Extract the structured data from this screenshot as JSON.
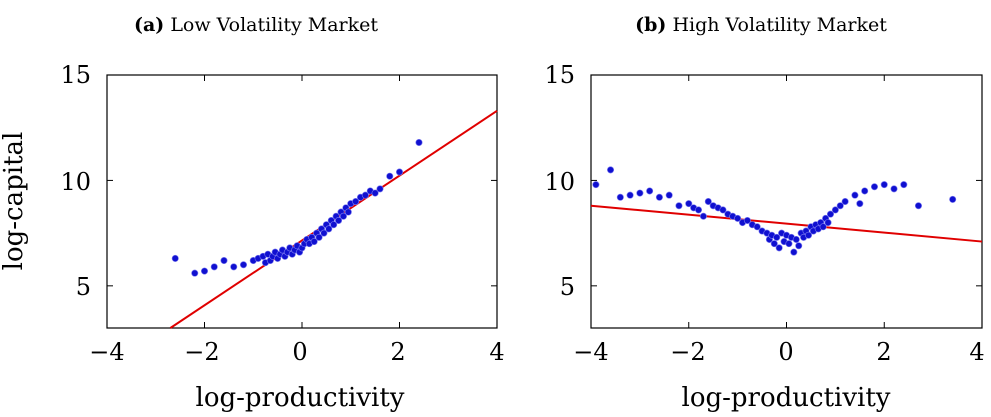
{
  "chart_data": [
    {
      "type": "scatter",
      "panel_label": "(a)",
      "title": "Low Volatility Market",
      "xlabel": "log-productivity",
      "ylabel": "log-capital",
      "xlim": [
        -4,
        4
      ],
      "ylim": [
        3,
        15
      ],
      "xticks": [
        -4,
        -2,
        0,
        2,
        4
      ],
      "yticks": [
        5,
        10,
        15
      ],
      "grid": false,
      "marker_color": "#1010d0",
      "line_color": "#e00000",
      "series": [
        {
          "kind": "points",
          "points": [
            [
              -2.6,
              6.3
            ],
            [
              -2.2,
              5.6
            ],
            [
              -2.0,
              5.7
            ],
            [
              -1.8,
              5.9
            ],
            [
              -1.6,
              6.2
            ],
            [
              -1.4,
              5.9
            ],
            [
              -1.2,
              6.0
            ],
            [
              -1.0,
              6.2
            ],
            [
              -0.9,
              6.3
            ],
            [
              -0.8,
              6.4
            ],
            [
              -0.75,
              6.1
            ],
            [
              -0.7,
              6.5
            ],
            [
              -0.65,
              6.2
            ],
            [
              -0.6,
              6.4
            ],
            [
              -0.55,
              6.6
            ],
            [
              -0.5,
              6.3
            ],
            [
              -0.45,
              6.5
            ],
            [
              -0.4,
              6.7
            ],
            [
              -0.35,
              6.4
            ],
            [
              -0.3,
              6.6
            ],
            [
              -0.25,
              6.8
            ],
            [
              -0.2,
              6.5
            ],
            [
              -0.15,
              6.7
            ],
            [
              -0.1,
              6.9
            ],
            [
              -0.05,
              6.6
            ],
            [
              0.0,
              6.8
            ],
            [
              0.05,
              7.0
            ],
            [
              0.1,
              7.2
            ],
            [
              0.15,
              7.0
            ],
            [
              0.2,
              7.3
            ],
            [
              0.25,
              7.1
            ],
            [
              0.3,
              7.5
            ],
            [
              0.35,
              7.3
            ],
            [
              0.4,
              7.7
            ],
            [
              0.45,
              7.5
            ],
            [
              0.5,
              7.9
            ],
            [
              0.55,
              7.7
            ],
            [
              0.6,
              8.1
            ],
            [
              0.65,
              7.9
            ],
            [
              0.7,
              8.3
            ],
            [
              0.75,
              8.1
            ],
            [
              0.8,
              8.5
            ],
            [
              0.85,
              8.3
            ],
            [
              0.9,
              8.7
            ],
            [
              0.95,
              8.5
            ],
            [
              1.0,
              8.9
            ],
            [
              1.1,
              9.0
            ],
            [
              1.2,
              9.2
            ],
            [
              1.3,
              9.3
            ],
            [
              1.4,
              9.5
            ],
            [
              1.5,
              9.4
            ],
            [
              1.6,
              9.6
            ],
            [
              1.8,
              10.2
            ],
            [
              2.0,
              10.4
            ],
            [
              2.4,
              11.8
            ]
          ]
        },
        {
          "kind": "fit_line",
          "x": [
            -2.7,
            4.0
          ],
          "y": [
            3.0,
            13.3
          ]
        }
      ]
    },
    {
      "type": "scatter",
      "panel_label": "(b)",
      "title": "High Volatility Market",
      "xlabel": "log-productivity",
      "ylabel": "",
      "xlim": [
        -4,
        4
      ],
      "ylim": [
        3,
        15
      ],
      "xticks": [
        -4,
        -2,
        0,
        2,
        4
      ],
      "yticks": [
        5,
        10,
        15
      ],
      "grid": false,
      "marker_color": "#1010d0",
      "line_color": "#e00000",
      "series": [
        {
          "kind": "points",
          "points": [
            [
              -3.9,
              9.8
            ],
            [
              -3.6,
              10.5
            ],
            [
              -3.4,
              9.2
            ],
            [
              -3.2,
              9.3
            ],
            [
              -3.0,
              9.4
            ],
            [
              -2.8,
              9.5
            ],
            [
              -2.6,
              9.2
            ],
            [
              -2.4,
              9.3
            ],
            [
              -2.2,
              8.8
            ],
            [
              -2.0,
              8.9
            ],
            [
              -1.9,
              8.7
            ],
            [
              -1.8,
              8.6
            ],
            [
              -1.7,
              8.3
            ],
            [
              -1.6,
              9.0
            ],
            [
              -1.5,
              8.8
            ],
            [
              -1.4,
              8.7
            ],
            [
              -1.3,
              8.6
            ],
            [
              -1.2,
              8.4
            ],
            [
              -1.1,
              8.3
            ],
            [
              -1.0,
              8.2
            ],
            [
              -0.9,
              8.0
            ],
            [
              -0.8,
              8.1
            ],
            [
              -0.7,
              7.9
            ],
            [
              -0.6,
              7.8
            ],
            [
              -0.5,
              7.6
            ],
            [
              -0.4,
              7.5
            ],
            [
              -0.35,
              7.2
            ],
            [
              -0.3,
              7.4
            ],
            [
              -0.25,
              7.0
            ],
            [
              -0.2,
              7.3
            ],
            [
              -0.15,
              6.8
            ],
            [
              -0.1,
              7.5
            ],
            [
              -0.05,
              7.1
            ],
            [
              0.0,
              7.4
            ],
            [
              0.05,
              7.0
            ],
            [
              0.1,
              7.3
            ],
            [
              0.15,
              6.6
            ],
            [
              0.2,
              7.2
            ],
            [
              0.25,
              6.9
            ],
            [
              0.3,
              7.5
            ],
            [
              0.35,
              7.3
            ],
            [
              0.4,
              7.6
            ],
            [
              0.45,
              7.4
            ],
            [
              0.5,
              7.8
            ],
            [
              0.55,
              7.6
            ],
            [
              0.6,
              7.9
            ],
            [
              0.65,
              7.7
            ],
            [
              0.7,
              8.0
            ],
            [
              0.75,
              7.8
            ],
            [
              0.8,
              8.2
            ],
            [
              0.85,
              8.0
            ],
            [
              0.9,
              8.4
            ],
            [
              1.0,
              8.6
            ],
            [
              1.1,
              8.8
            ],
            [
              1.2,
              9.0
            ],
            [
              1.4,
              9.3
            ],
            [
              1.5,
              8.9
            ],
            [
              1.6,
              9.5
            ],
            [
              1.8,
              9.7
            ],
            [
              2.0,
              9.8
            ],
            [
              2.2,
              9.6
            ],
            [
              2.4,
              9.8
            ],
            [
              2.7,
              8.8
            ],
            [
              3.4,
              9.1
            ]
          ]
        },
        {
          "kind": "fit_line",
          "x": [
            -4.0,
            4.0
          ],
          "y": [
            8.8,
            7.1
          ]
        }
      ]
    }
  ]
}
